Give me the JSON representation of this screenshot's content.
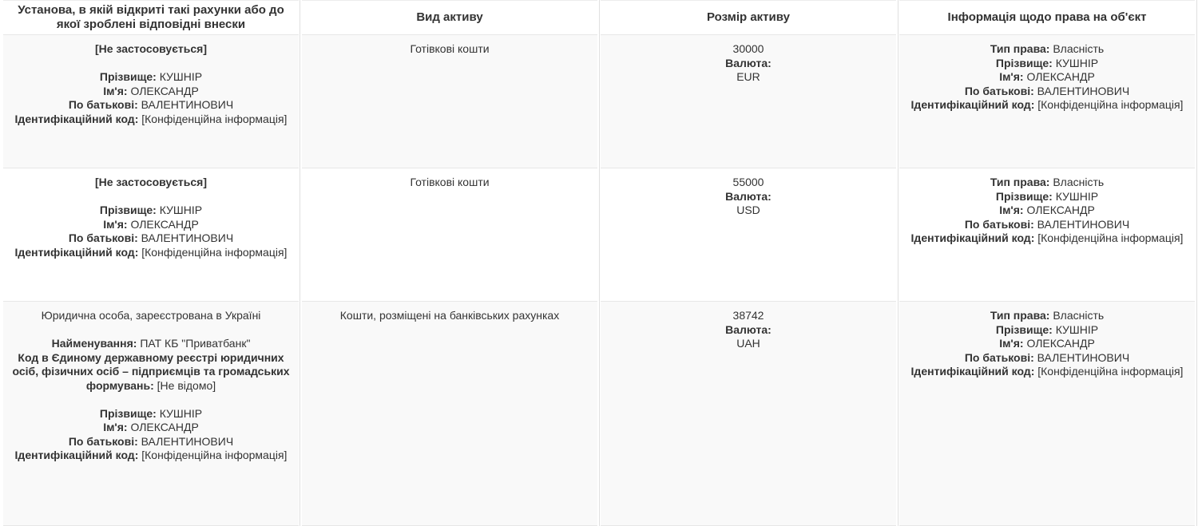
{
  "page": {
    "background": "#ffffff",
    "text_color": "#333333",
    "stripe_color": "#f9f9f9",
    "border_color": "#e7e7e7",
    "divider_color": "#e0e0e0"
  },
  "table": {
    "headers": [
      "Установа, в якій відкриті такі рахунки або до якої зроблені відповідні внески",
      "Вид активу",
      "Розмір активу",
      "Інформація щодо права на об'єкт"
    ],
    "rows": [
      {
        "institution": {
          "intro": "[Не застосовується]",
          "fields": [
            {
              "label": "Прізвище:",
              "value": "КУШНІР"
            },
            {
              "label": "Ім'я:",
              "value": "ОЛЕКСАНДР"
            },
            {
              "label": "По батькові:",
              "value": "ВАЛЕНТИНОВИЧ"
            },
            {
              "label": "Ідентифікаційний код:",
              "value": "[Конфіденційна інформація]"
            }
          ]
        },
        "asset_type": "Готівкові кошти",
        "asset_size": {
          "value": "30000",
          "currency_label": "Валюта:",
          "currency": "EUR"
        },
        "rights_fields": [
          {
            "label": "Тип права:",
            "value": "Власність"
          },
          {
            "label": "Прізвище:",
            "value": "КУШНІР"
          },
          {
            "label": "Ім'я:",
            "value": "ОЛЕКСАНДР"
          },
          {
            "label": "По батькові:",
            "value": "ВАЛЕНТИНОВИЧ"
          },
          {
            "label": "Ідентифікаційний код:",
            "value": "[Конфіденційна інформація]"
          }
        ]
      },
      {
        "institution": {
          "intro": "[Не застосовується]",
          "fields": [
            {
              "label": "Прізвище:",
              "value": "КУШНІР"
            },
            {
              "label": "Ім'я:",
              "value": "ОЛЕКСАНДР"
            },
            {
              "label": "По батькові:",
              "value": "ВАЛЕНТИНОВИЧ"
            },
            {
              "label": "Ідентифікаційний код:",
              "value": "[Конфіденційна інформація]"
            }
          ]
        },
        "asset_type": "Готівкові кошти",
        "asset_size": {
          "value": "55000",
          "currency_label": "Валюта:",
          "currency": "USD"
        },
        "rights_fields": [
          {
            "label": "Тип права:",
            "value": "Власність"
          },
          {
            "label": "Прізвище:",
            "value": "КУШНІР"
          },
          {
            "label": "Ім'я:",
            "value": "ОЛЕКСАНДР"
          },
          {
            "label": "По батькові:",
            "value": "ВАЛЕНТИНОВИЧ"
          },
          {
            "label": "Ідентифікаційний код:",
            "value": "[Конфіденційна інформація]"
          }
        ]
      },
      {
        "institution": {
          "intro": "Юридична особа, зареєстрована в Україні",
          "org_fields": [
            {
              "label": "Найменування:",
              "value": "ПАТ КБ \"Приватбанк\""
            },
            {
              "label": "Код в Єдиному державному реєстрі юридичних осіб, фізичних осіб – підприємців та громадських формувань:",
              "value": "[Не відомо]"
            }
          ],
          "fields": [
            {
              "label": "Прізвище:",
              "value": "КУШНІР"
            },
            {
              "label": "Ім'я:",
              "value": "ОЛЕКСАНДР"
            },
            {
              "label": "По батькові:",
              "value": "ВАЛЕНТИНОВИЧ"
            },
            {
              "label": "Ідентифікаційний код:",
              "value": "[Конфіденційна інформація]"
            }
          ]
        },
        "asset_type": "Кошти, розміщені на банківських рахунках",
        "asset_size": {
          "value": "38742",
          "currency_label": "Валюта:",
          "currency": "UAH"
        },
        "rights_fields": [
          {
            "label": "Тип права:",
            "value": "Власність"
          },
          {
            "label": "Прізвище:",
            "value": "КУШНІР"
          },
          {
            "label": "Ім'я:",
            "value": "ОЛЕКСАНДР"
          },
          {
            "label": "По батькові:",
            "value": "ВАЛЕНТИНОВИЧ"
          },
          {
            "label": "Ідентифікаційний код:",
            "value": "[Конфіденційна інформація]"
          }
        ]
      }
    ]
  }
}
